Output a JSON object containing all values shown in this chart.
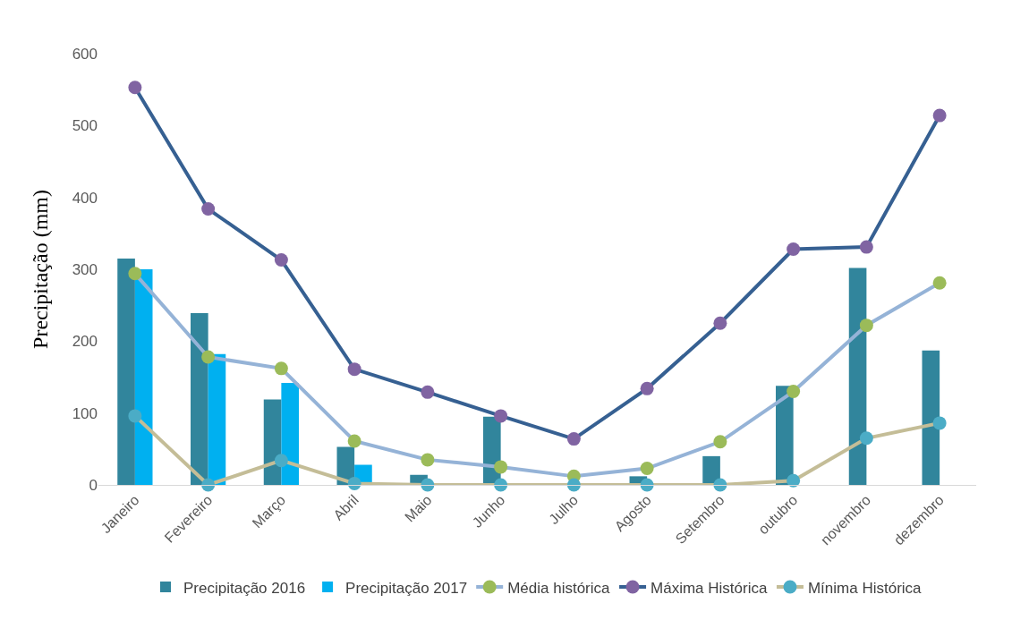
{
  "chart_data": {
    "type": "bar",
    "ylabel": "Precipitação (mm)",
    "categories": [
      "Janeiro",
      "Fevereiro",
      "Março",
      "Abril",
      "Maio",
      "Junho",
      "Julho",
      "Agosto",
      "Setembro",
      "outubro",
      "novembro",
      "dezembro"
    ],
    "series": [
      {
        "name": "Precipitação 2016",
        "color": "#31859c",
        "values": [
          315,
          239,
          119,
          53,
          14,
          95,
          null,
          12,
          40,
          138,
          302,
          187
        ]
      },
      {
        "name": "Precipitação 2017",
        "color": "#00b0f0",
        "values": [
          300,
          182,
          142,
          28,
          null,
          null,
          null,
          null,
          null,
          null,
          null,
          null
        ]
      },
      {
        "name": "Média histórica",
        "type": "line",
        "color": "#95b3d7",
        "colors": [
          "#9bbb59",
          "#9bbb59",
          "#9bbb59",
          "#9bbb59",
          "#9bbb59",
          "#9bbb59",
          "#9bbb59",
          "#9bbb59",
          "#9bbb59",
          "#9bbb59",
          "#9bbb59",
          "#9bbb59"
        ],
        "values": [
          294,
          178,
          162,
          61,
          35,
          25,
          12,
          23,
          60,
          130,
          222,
          281
        ]
      },
      {
        "name": "Máxima Histórica",
        "type": "line",
        "color": "#366092",
        "colors": [
          "#8064a2",
          "#8064a2",
          "#8064a2",
          "#8064a2",
          "#8064a2",
          "#8064a2",
          "#8064a2",
          "#8064a2",
          "#8064a2",
          "#8064a2",
          "#8064a2",
          "#8064a2"
        ],
        "values": [
          553,
          384,
          313,
          161,
          129,
          96,
          64,
          134,
          225,
          328,
          331,
          514
        ]
      },
      {
        "name": "Mínima Histórica",
        "type": "line",
        "color": "#c4bd97",
        "colors": [
          "#4bacc6",
          "#4bacc6",
          "#4bacc6",
          "#4bacc6",
          "#4bacc6",
          "#4bacc6",
          "#4bacc6",
          "#4bacc6",
          "#4bacc6",
          "#4bacc6",
          "#4bacc6",
          "#4bacc6"
        ],
        "values": [
          96,
          0,
          34,
          2,
          0,
          0,
          0,
          0,
          0,
          6,
          65,
          86
        ]
      }
    ],
    "ylim": [
      0,
      600
    ],
    "yticks": [
      0,
      100,
      200,
      300,
      400,
      500,
      600
    ],
    "grid": false,
    "legend": "bottom",
    "marker": "circle",
    "line_style": "solid"
  }
}
